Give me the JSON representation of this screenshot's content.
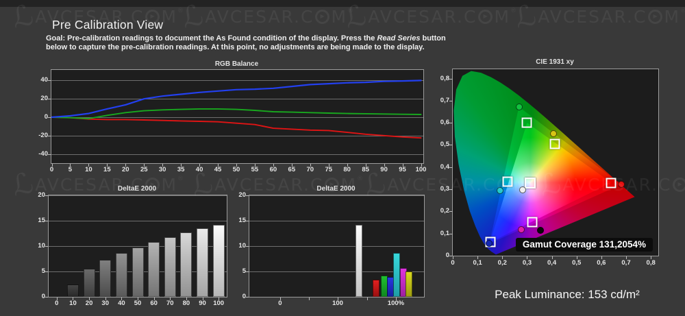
{
  "page": {
    "title": "Pre Calibration View",
    "goal": {
      "pre": "Goal: Pre-calibration readings to document the As Found condition of the display. Press the ",
      "em": "Read Series",
      "post": " button below to capture the pre-calibration readings. At this point, no adjustments are being made to the display."
    },
    "peak_luminance": "Peak Luminance: 153 cd/m²"
  },
  "watermark": {
    "glyph": "ℒ",
    "part1": "AVCESAR.C",
    "part2": "M",
    "reg": "®",
    "play": "▶"
  },
  "colors": {
    "background": "#393939",
    "plot_background": "#1e1e1e",
    "frame_border": "#9c9c9c",
    "red_line": "#e01414",
    "green_line": "#18a81e",
    "blue_line": "#2340f0"
  },
  "chart_data": [
    {
      "id": "rgb_balance",
      "type": "line",
      "title": "RGB Balance",
      "x": [
        0,
        5,
        10,
        15,
        20,
        25,
        30,
        35,
        40,
        45,
        50,
        55,
        60,
        65,
        70,
        75,
        80,
        85,
        90,
        95,
        100
      ],
      "ylim": [
        -50,
        51.5
      ],
      "yticks": [
        40,
        20,
        0,
        -20,
        -40
      ],
      "series": [
        {
          "name": "red",
          "color": "#e01414",
          "values": [
            0,
            -0.5,
            -2,
            -2.5,
            -2.5,
            -3,
            -3.5,
            -4,
            -4.5,
            -5,
            -6.5,
            -8,
            -12,
            -13,
            -14,
            -14.5,
            -16.5,
            -18.5,
            -20,
            -21.5,
            -22.5
          ]
        },
        {
          "name": "green",
          "color": "#18a81e",
          "values": [
            0,
            -0.5,
            -1.5,
            2,
            5,
            7,
            8,
            8.5,
            9,
            9,
            8.5,
            7.5,
            6,
            5.5,
            5,
            4.5,
            4,
            3.8,
            3.5,
            3.2,
            3
          ]
        },
        {
          "name": "blue",
          "color": "#2340f0",
          "values": [
            0,
            1.5,
            4,
            9,
            13.5,
            20,
            23,
            25,
            27,
            28.5,
            30,
            30.5,
            31.5,
            33.5,
            35.5,
            36.5,
            37.5,
            38,
            39,
            39.5,
            40
          ]
        }
      ]
    },
    {
      "id": "grayscale_deltae",
      "type": "bar",
      "title": "DeltaE 2000",
      "categories": [
        "0",
        "10",
        "20",
        "30",
        "40",
        "50",
        "60",
        "70",
        "80",
        "90",
        "100"
      ],
      "values": [
        0,
        2.4,
        5.5,
        7.3,
        8.6,
        9.7,
        10.8,
        11.8,
        12.7,
        13.5,
        14.2
      ],
      "bar_colors": [
        null,
        [
          "#454545",
          "#2a2a2a"
        ],
        [
          "#6a6a6a",
          "#3e3e3e"
        ],
        [
          "#808080",
          "#4c4c4c"
        ],
        [
          "#929292",
          "#5a5a5a"
        ],
        [
          "#a3a3a3",
          "#666666"
        ],
        [
          "#b4b4b4",
          "#747474"
        ],
        [
          "#c5c5c5",
          "#828282"
        ],
        [
          "#d7d7d7",
          "#929292"
        ],
        [
          "#eaeaea",
          "#a4a4a4"
        ],
        [
          "#fbfbfb",
          "#b6b6b6"
        ]
      ],
      "ylim": [
        0,
        20
      ],
      "yticks": [
        0,
        5,
        10,
        15,
        20
      ]
    },
    {
      "id": "color_deltae",
      "type": "bar",
      "title": "DeltaE 2000",
      "ylim": [
        0,
        20
      ],
      "yticks": [
        0,
        5,
        10,
        15,
        20
      ],
      "bars": [
        {
          "name": "white",
          "value": 14.2,
          "pos": 0.627,
          "colors": [
            "#fbfbfb",
            "#c4c4c4"
          ]
        },
        {
          "name": "red",
          "value": 3.4,
          "pos": 0.725,
          "colors": [
            "#e02020",
            "#9c1010"
          ]
        },
        {
          "name": "green",
          "value": 4.2,
          "pos": 0.773,
          "colors": [
            "#20c030",
            "#108820"
          ]
        },
        {
          "name": "blue",
          "value": 3.9,
          "pos": 0.808,
          "colors": [
            "#2838e0",
            "#181fa0"
          ]
        },
        {
          "name": "cyan",
          "value": 8.6,
          "pos": 0.843,
          "colors": [
            "#38d8dc",
            "#1f9ea6"
          ]
        },
        {
          "name": "magenta",
          "value": 5.7,
          "pos": 0.882,
          "colors": [
            "#e034e0",
            "#9e20a0"
          ]
        },
        {
          "name": "yellow",
          "value": 5.0,
          "pos": 0.914,
          "colors": [
            "#d8d820",
            "#9e9e10"
          ]
        }
      ],
      "xticks": [
        0.176,
        0.341,
        0.506,
        0.675,
        0.839
      ],
      "xlabels": [
        {
          "pos": 0.176,
          "text": "0"
        },
        {
          "pos": 0.506,
          "text": "100"
        },
        {
          "pos": 0.839,
          "text": "100%"
        }
      ]
    },
    {
      "id": "cie1931",
      "type": "scatter",
      "title": "CIE 1931 xy",
      "xlim": [
        0,
        0.83
      ],
      "ylim": [
        0,
        0.842
      ],
      "tick_step": 0.1,
      "xtick_labels": [
        "0",
        "0,1",
        "0,2",
        "0,3",
        "0,4",
        "0,5",
        "0,6",
        "0,7",
        "0,8"
      ],
      "ytick_labels": [
        "0",
        "0,1",
        "0,2",
        "0,3",
        "0,4",
        "0,5",
        "0,6",
        "0,7",
        "0,8"
      ],
      "gamut_coverage": "Gamut Coverage 131,2054%",
      "reference_triangle": [
        [
          0.64,
          0.33
        ],
        [
          0.3,
          0.6
        ],
        [
          0.15,
          0.06
        ]
      ],
      "measured_triangle": [
        [
          0.681,
          0.322
        ],
        [
          0.267,
          0.672
        ],
        [
          0.148,
          0.055
        ]
      ],
      "reference_points": [
        {
          "name": "green",
          "xy": [
            0.3,
            0.6
          ]
        },
        {
          "name": "yellow",
          "xy": [
            0.411,
            0.505
          ]
        },
        {
          "name": "red",
          "xy": [
            0.639,
            0.328
          ]
        },
        {
          "name": "white",
          "xy": [
            0.3127,
            0.329
          ]
        },
        {
          "name": "cyan",
          "xy": [
            0.222,
            0.333
          ]
        },
        {
          "name": "magenta",
          "xy": [
            0.321,
            0.151
          ]
        },
        {
          "name": "blue",
          "xy": [
            0.153,
            0.063
          ]
        }
      ],
      "measured_points": [
        {
          "name": "green",
          "color": "#12c23e",
          "xy": [
            0.267,
            0.672
          ]
        },
        {
          "name": "yellow",
          "color": "#d8c414",
          "xy": [
            0.406,
            0.551
          ]
        },
        {
          "name": "red",
          "color": "#e41212",
          "xy": [
            0.681,
            0.322
          ]
        },
        {
          "name": "white",
          "color": "#f0f0f0",
          "xy": [
            0.282,
            0.298
          ]
        },
        {
          "name": "cyan",
          "color": "#22c8cc",
          "xy": [
            0.191,
            0.293
          ]
        },
        {
          "name": "magenta",
          "color": "#e020a8",
          "xy": [
            0.276,
            0.119
          ]
        },
        {
          "name": "black",
          "color": "#0a0a0a",
          "xy": [
            0.353,
            0.114
          ]
        },
        {
          "name": "blue",
          "color": "#1428b4",
          "xy": [
            0.146,
            0.056
          ]
        }
      ]
    }
  ]
}
